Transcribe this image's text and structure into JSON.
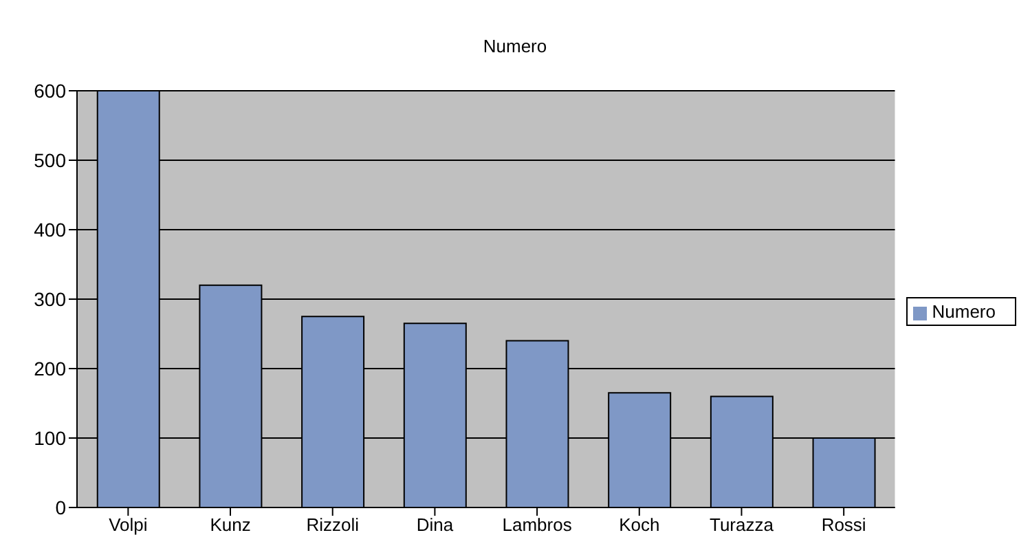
{
  "chart_data": {
    "type": "bar",
    "title": "Numero",
    "categories": [
      "Volpi",
      "Kunz",
      "Rizzoli",
      "Dina",
      "Lambros",
      "Koch",
      "Turazza",
      "Rossi"
    ],
    "series": [
      {
        "name": "Numero",
        "color": "#7f98c6",
        "values": [
          600,
          320,
          275,
          265,
          240,
          165,
          160,
          100
        ]
      }
    ],
    "ylim": [
      0,
      600
    ],
    "yticks": [
      0,
      100,
      200,
      300,
      400,
      500,
      600
    ],
    "grid": "y",
    "legend": "right"
  }
}
